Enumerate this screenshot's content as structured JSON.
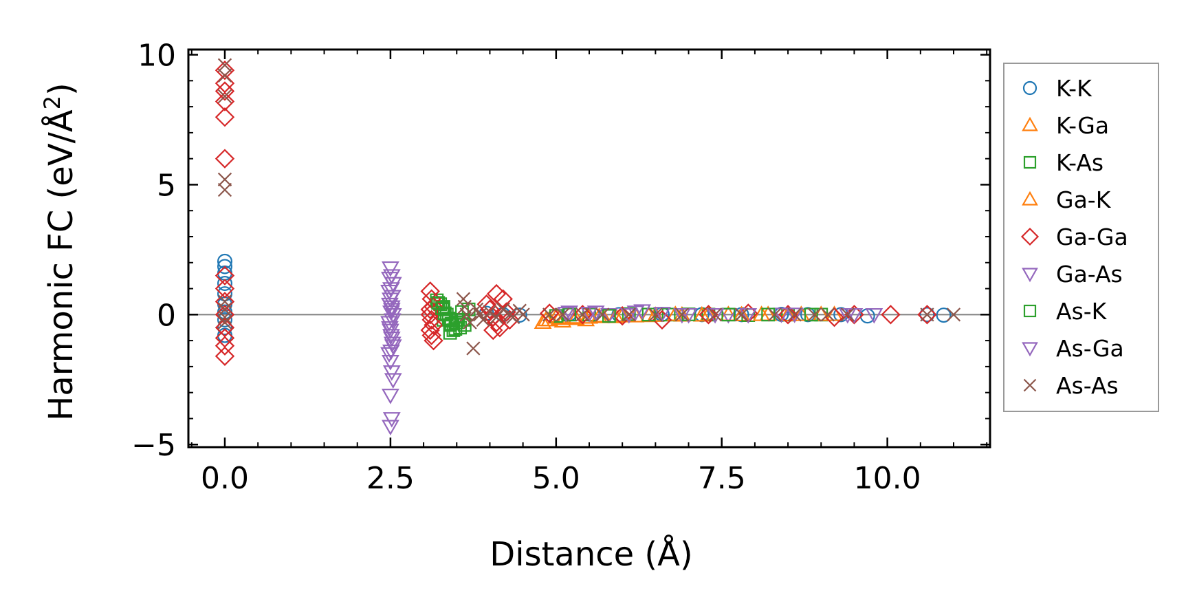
{
  "chart_data": {
    "type": "scatter",
    "xlabel": "Distance (Å)",
    "ylabel_main": "Harmonic FC (eV/Å",
    "ylabel_sup": "2",
    "ylabel_close": ")",
    "xlim": [
      -0.55,
      11.55
    ],
    "ylim": [
      -5.1,
      10.2
    ],
    "x_ticks": [
      {
        "value": 0.0,
        "label": "0.0"
      },
      {
        "value": 2.5,
        "label": "2.5"
      },
      {
        "value": 5.0,
        "label": "5.0"
      },
      {
        "value": 7.5,
        "label": "7.5"
      },
      {
        "value": 10.0,
        "label": "10.0"
      }
    ],
    "y_ticks": [
      {
        "value": -5,
        "label": "−5"
      },
      {
        "value": 0,
        "label": "0"
      },
      {
        "value": 5,
        "label": "5"
      },
      {
        "value": 10,
        "label": "10"
      }
    ],
    "zero_line": true,
    "grid": false,
    "legend_position": "outside-right",
    "series": [
      {
        "name": "K-K",
        "marker": "circle",
        "color": "#1f77b4",
        "x": [
          0,
          0,
          0,
          0,
          0,
          0,
          0,
          0,
          0,
          0,
          3.95,
          4.2,
          4.45,
          5.2,
          5.55,
          5.95,
          6.6,
          7.2,
          7.8,
          8.4,
          8.8,
          9.3,
          9.7,
          10.6,
          10.85
        ],
        "y": [
          2.05,
          1.85,
          1.6,
          1.2,
          0.8,
          0.4,
          0.1,
          -0.2,
          -0.5,
          -0.8,
          0.05,
          0,
          -0.02,
          0.02,
          0,
          0,
          0.01,
          0,
          0,
          0.01,
          0,
          0,
          -0.05,
          0,
          -0.02
        ]
      },
      {
        "name": "K-Ga",
        "marker": "triangle-up",
        "color": "#ff7f0e",
        "x": [
          4.8,
          4.9,
          5.0,
          5.1,
          5.3,
          5.5,
          5.7,
          5.9,
          6.2,
          6.5,
          6.9,
          7.3,
          7.8,
          8.2,
          8.7,
          9.2
        ],
        "y": [
          -0.3,
          -0.2,
          -0.1,
          -0.25,
          -0.15,
          -0.1,
          -0.05,
          -0.08,
          -0.05,
          -0.03,
          -0.02,
          0,
          -0.01,
          0,
          0,
          0
        ]
      },
      {
        "name": "K-As",
        "marker": "square",
        "color": "#2ca02c",
        "x": [
          3.2,
          3.25,
          3.3,
          3.35,
          3.3,
          3.4,
          3.45,
          3.5,
          3.55,
          3.6,
          3.3,
          3.4,
          5.0,
          5.5,
          6.1,
          6.7,
          7.3,
          7.9,
          8.5,
          9.0
        ],
        "y": [
          0.55,
          0.4,
          0.2,
          0,
          -0.2,
          -0.4,
          -0.6,
          -0.3,
          -0.5,
          -0.2,
          0.3,
          -0.7,
          -0.05,
          0,
          0.02,
          0,
          0,
          -0.02,
          0,
          0
        ]
      },
      {
        "name": "Ga-K",
        "marker": "triangle-up",
        "color": "#ff7f0e",
        "x": [
          4.85,
          5.05,
          5.25,
          5.45,
          5.65,
          6.0,
          6.4,
          6.8,
          7.2,
          7.6,
          8.1,
          8.5,
          9.0
        ],
        "y": [
          -0.2,
          -0.15,
          -0.1,
          -0.2,
          -0.08,
          -0.05,
          -0.04,
          0,
          -0.02,
          0,
          0,
          -0.01,
          0
        ]
      },
      {
        "name": "Ga-Ga",
        "marker": "diamond",
        "color": "#d62728",
        "x": [
          0,
          0,
          0,
          0,
          0,
          0,
          0,
          0,
          0,
          0,
          0,
          0,
          0,
          0,
          3.1,
          3.12,
          3.15,
          3.1,
          3.12,
          3.15,
          3.1,
          3.12,
          3.15,
          3.1,
          3.95,
          4.0,
          4.05,
          4.1,
          4.15,
          4.2,
          4.25,
          4.3,
          4.1,
          4.05,
          4.9,
          5.4,
          6.0,
          6.6,
          7.3,
          7.9,
          8.5,
          9.2,
          9.5,
          10.05,
          10.6
        ],
        "y": [
          9.4,
          8.9,
          8.6,
          8.2,
          7.6,
          6.0,
          1.5,
          1.0,
          0.5,
          0,
          -0.5,
          -0.9,
          -1.2,
          -1.6,
          0.9,
          0.6,
          0.3,
          0,
          -0.2,
          -0.4,
          -0.6,
          -0.8,
          -1.0,
          0.2,
          0.4,
          0.2,
          -0.1,
          -0.3,
          -0.5,
          0.6,
          0.1,
          -0.2,
          0.8,
          -0.6,
          0.05,
          0,
          -0.05,
          -0.2,
          0,
          0.05,
          0,
          -0.1,
          0,
          0,
          0
        ]
      },
      {
        "name": "Ga-As",
        "marker": "triangle-down",
        "color": "#9467bd",
        "x": [
          2.5,
          2.52,
          2.54,
          2.48,
          2.5,
          2.52,
          2.54,
          2.48,
          2.5,
          2.52,
          2.54,
          2.48,
          2.5,
          2.52,
          2.54,
          2.5,
          2.52,
          2.5,
          2.52,
          5.2,
          5.5,
          5.8,
          6.2,
          6.9,
          7.6,
          8.4,
          9.4,
          9.8
        ],
        "y": [
          1.8,
          1.5,
          1.2,
          0.9,
          0.6,
          0.3,
          0,
          -0.3,
          -0.6,
          -0.9,
          -1.2,
          -1.5,
          -1.8,
          -2.2,
          -2.5,
          -3.1,
          -4.0,
          -4.3,
          0.2,
          0.1,
          0.05,
          0,
          0.1,
          0,
          0,
          0.02,
          0,
          0
        ]
      },
      {
        "name": "As-K",
        "marker": "square",
        "color": "#2ca02c",
        "x": [
          3.22,
          3.28,
          3.32,
          3.38,
          3.42,
          3.48,
          3.52,
          3.58,
          3.62,
          3.68,
          5.2,
          5.8,
          6.4,
          7.0,
          7.6,
          8.2,
          8.85
        ],
        "y": [
          0.45,
          0.25,
          0.05,
          -0.15,
          -0.35,
          -0.55,
          -0.2,
          0.1,
          -0.4,
          0.2,
          0,
          -0.05,
          0,
          0.01,
          0,
          0,
          0
        ]
      },
      {
        "name": "As-Ga",
        "marker": "triangle-down",
        "color": "#9467bd",
        "x": [
          2.49,
          2.51,
          2.53,
          2.49,
          2.51,
          2.53,
          2.49,
          2.51,
          2.53,
          2.51,
          5.15,
          5.6,
          6.1,
          6.3,
          6.6,
          7.0,
          7.4,
          7.9,
          8.6,
          9.5
        ],
        "y": [
          1.4,
          1.0,
          0.7,
          0.4,
          0.1,
          -0.2,
          -0.5,
          -0.8,
          -1.1,
          -1.4,
          0.05,
          0.1,
          0,
          0.15,
          0.05,
          0,
          0,
          0,
          0.02,
          0
        ]
      },
      {
        "name": "As-As",
        "marker": "x",
        "color": "#8c564b",
        "x": [
          0,
          0,
          0,
          0,
          0,
          0,
          0,
          0,
          0,
          3.6,
          3.62,
          3.65,
          3.7,
          3.75,
          3.8,
          3.85,
          3.9,
          4.0,
          4.1,
          4.2,
          4.3,
          4.35,
          4.45,
          4.5,
          4.9,
          5.1,
          5.4,
          5.7,
          6.1,
          6.5,
          6.9,
          7.4,
          7.8,
          8.3,
          8.6,
          8.9,
          9.1,
          9.4,
          10.6,
          11.0
        ],
        "y": [
          9.6,
          9.2,
          8.4,
          5.2,
          4.8,
          0.5,
          0.2,
          -0.1,
          -0.3,
          0.6,
          0.3,
          0,
          -0.3,
          -1.3,
          0.2,
          0,
          -0.2,
          0.1,
          -0.1,
          0.2,
          0,
          -0.1,
          0.15,
          0,
          0,
          0,
          0,
          0,
          0,
          0,
          0,
          0,
          0,
          0,
          0,
          0,
          0,
          0,
          0,
          0
        ]
      }
    ]
  }
}
